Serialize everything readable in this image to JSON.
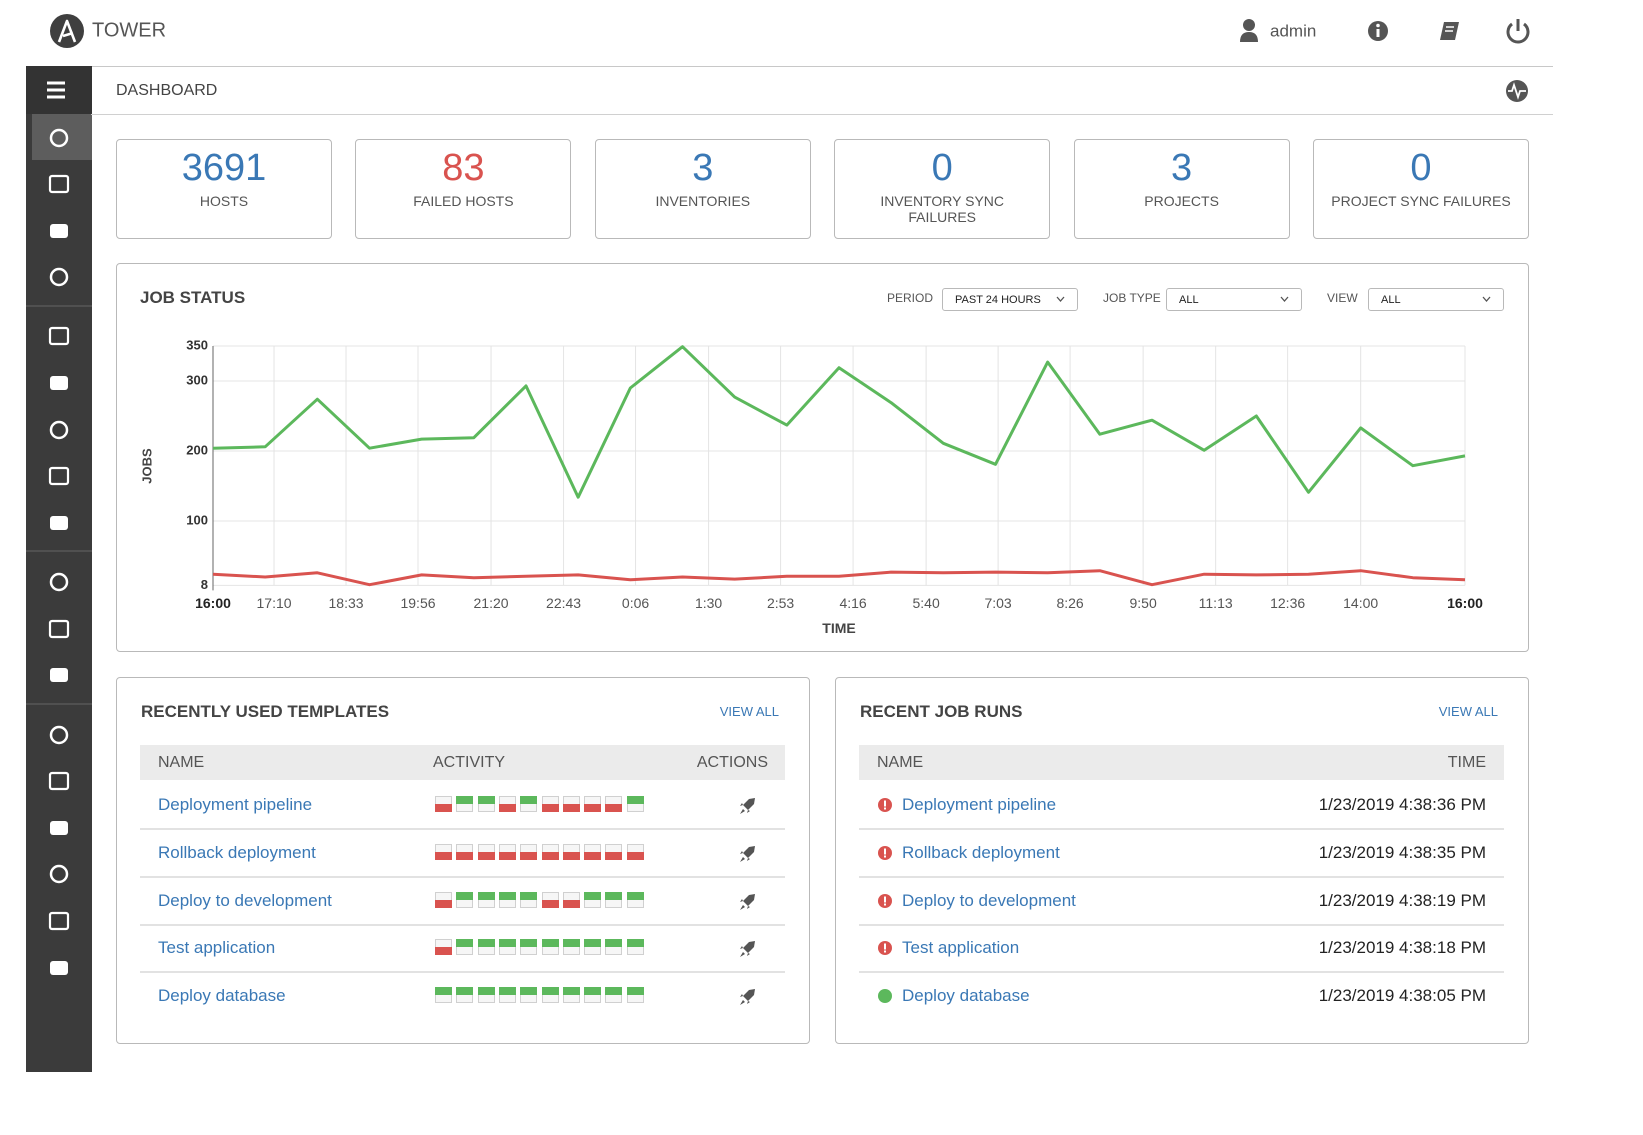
{
  "header": {
    "brand": "TOWER",
    "user": "admin"
  },
  "breadcrumb": "DASHBOARD",
  "counts": [
    {
      "value": 3691,
      "label": "HOSTS",
      "color": "#3a78b5"
    },
    {
      "value": 83,
      "label": "FAILED HOSTS",
      "color": "#d9534f"
    },
    {
      "value": 3,
      "label": "INVENTORIES",
      "color": "#3a78b5"
    },
    {
      "value": 0,
      "label": "INVENTORY SYNC FAILURES",
      "color": "#3a78b5"
    },
    {
      "value": 3,
      "label": "PROJECTS",
      "color": "#3a78b5"
    },
    {
      "value": 0,
      "label": "PROJECT SYNC FAILURES",
      "color": "#3a78b5"
    }
  ],
  "job_status": {
    "title": "JOB STATUS",
    "filters": [
      {
        "label": "PERIOD",
        "value": "PAST 24 HOURS"
      },
      {
        "label": "JOB TYPE",
        "value": "ALL"
      },
      {
        "label": "VIEW",
        "value": "ALL"
      }
    ]
  },
  "chart_data": {
    "type": "line",
    "xlabel": "TIME",
    "ylabel": "JOBS",
    "x": [
      0,
      1,
      2,
      3,
      4,
      5,
      6,
      7,
      8,
      9,
      10,
      11,
      12,
      13,
      14,
      15,
      16,
      17,
      18,
      19,
      20,
      21,
      22,
      23,
      24
    ],
    "xlim": [
      0,
      24
    ],
    "xticks": [
      {
        "value": 0,
        "label": "16:00"
      },
      {
        "value": 1.17,
        "label": "17:10"
      },
      {
        "value": 2.55,
        "label": "18:33"
      },
      {
        "value": 3.93,
        "label": "19:56"
      },
      {
        "value": 5.33,
        "label": "21:20"
      },
      {
        "value": 6.72,
        "label": "22:43"
      },
      {
        "value": 8.1,
        "label": "0:06"
      },
      {
        "value": 9.5,
        "label": "1:30"
      },
      {
        "value": 10.88,
        "label": "2:53"
      },
      {
        "value": 12.27,
        "label": "4:16"
      },
      {
        "value": 13.67,
        "label": "5:40"
      },
      {
        "value": 15.05,
        "label": "7:03"
      },
      {
        "value": 16.43,
        "label": "8:26"
      },
      {
        "value": 17.83,
        "label": "9:50"
      },
      {
        "value": 19.22,
        "label": "11:13"
      },
      {
        "value": 20.6,
        "label": "12:36"
      },
      {
        "value": 22,
        "label": "14:00"
      },
      {
        "value": 24,
        "label": "16:00"
      }
    ],
    "ylim": [
      8,
      350
    ],
    "yticks": [
      8,
      100,
      200,
      300,
      350
    ],
    "grid": true,
    "series": [
      {
        "color": "#5cb85c",
        "values": [
          204,
          206,
          274,
          204,
          217,
          219,
          293,
          134,
          290,
          349,
          277,
          237,
          319,
          269,
          211,
          181,
          327,
          224,
          244,
          201,
          250,
          141,
          233,
          179,
          193
        ]
      },
      {
        "color": "#d9534f",
        "values": [
          24,
          20,
          26,
          9,
          23,
          19,
          21,
          23,
          16,
          20,
          17,
          21,
          21,
          27,
          26,
          27,
          26,
          29,
          9,
          24,
          23,
          24,
          29,
          19,
          16
        ]
      }
    ]
  },
  "templates": {
    "title": "RECENTLY USED TEMPLATES",
    "view_all": "VIEW ALL",
    "columns": [
      "NAME",
      "ACTIVITY",
      "ACTIONS"
    ],
    "rows": [
      {
        "name": "Deployment pipeline",
        "activity": [
          "failed",
          "successful",
          "successful",
          "failed",
          "successful",
          "failed",
          "failed",
          "failed",
          "failed",
          "successful"
        ]
      },
      {
        "name": "Rollback deployment",
        "activity": [
          "failed",
          "failed",
          "failed",
          "failed",
          "failed",
          "failed",
          "failed",
          "failed",
          "failed",
          "failed"
        ]
      },
      {
        "name": "Deploy to development",
        "activity": [
          "failed",
          "successful",
          "successful",
          "successful",
          "successful",
          "failed",
          "failed",
          "successful",
          "successful",
          "successful"
        ]
      },
      {
        "name": "Test application",
        "activity": [
          "failed",
          "successful",
          "successful",
          "successful",
          "successful",
          "successful",
          "successful",
          "successful",
          "successful",
          "successful"
        ]
      },
      {
        "name": "Deploy database",
        "activity": [
          "successful",
          "successful",
          "successful",
          "successful",
          "successful",
          "successful",
          "successful",
          "successful",
          "successful",
          "successful"
        ]
      }
    ]
  },
  "job_runs": {
    "title": "RECENT JOB RUNS",
    "view_all": "VIEW ALL",
    "columns": [
      "NAME",
      "TIME"
    ],
    "rows": [
      {
        "name": "Deployment pipeline",
        "time": "1/23/2019 4:38:36 PM",
        "status": "failed"
      },
      {
        "name": "Rollback deployment",
        "time": "1/23/2019 4:38:35 PM",
        "status": "failed"
      },
      {
        "name": "Deploy to development",
        "time": "1/23/2019 4:38:19 PM",
        "status": "failed"
      },
      {
        "name": "Test application",
        "time": "1/23/2019 4:38:18 PM",
        "status": "failed"
      },
      {
        "name": "Deploy database",
        "time": "1/23/2019 4:38:05 PM",
        "status": "successful"
      }
    ]
  }
}
